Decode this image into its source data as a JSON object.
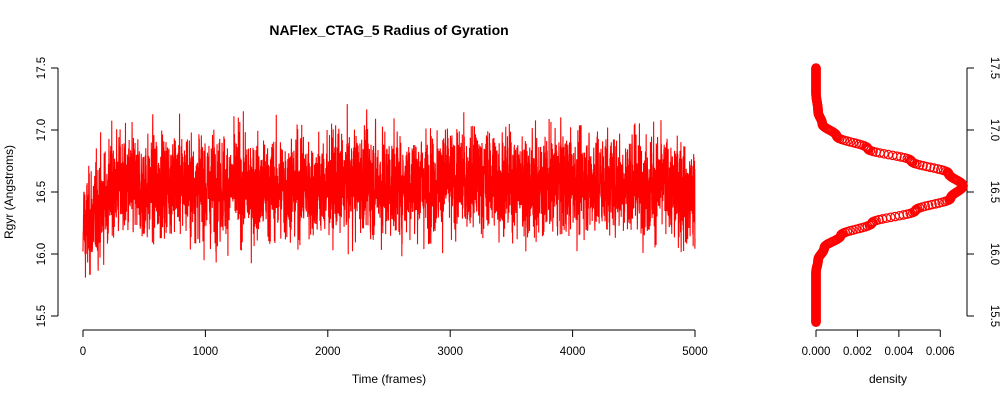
{
  "chart_data": [
    {
      "type": "line",
      "title": "NAFlex_CTAG_5 Radius of Gyration",
      "xlabel": "Time (frames)",
      "ylabel": "Rgyr (Angstroms)",
      "xlim": [
        0,
        5000
      ],
      "ylim": [
        15.5,
        17.5
      ],
      "x_ticks": [
        "0",
        "1000",
        "2000",
        "3000",
        "4000",
        "5000"
      ],
      "y_ticks": [
        "15.5",
        "16.0",
        "16.5",
        "17.0",
        "17.5"
      ],
      "series": [
        {
          "color": "#ff0000",
          "x": [
            0,
            250,
            500,
            750,
            1000,
            1250,
            1500,
            1750,
            2000,
            2250,
            2500,
            2750,
            3000,
            3250,
            3500,
            3750,
            4000,
            4250,
            4500,
            4750,
            5000
          ],
          "y": [
            16.02,
            16.55,
            16.5,
            16.6,
            16.52,
            16.55,
            16.5,
            16.55,
            16.52,
            16.6,
            16.55,
            16.58,
            16.6,
            16.62,
            16.58,
            16.56,
            16.6,
            16.58,
            16.6,
            16.55,
            16.45
          ],
          "y_mean": 16.56,
          "y_min": 15.51,
          "y_max": 17.49,
          "n_frames": 5000
        }
      ],
      "grid": false
    },
    {
      "type": "scatter",
      "title": "",
      "xlabel": "density",
      "ylabel": "",
      "xlim": [
        0,
        0.007
      ],
      "ylim": [
        15.5,
        17.5
      ],
      "x_ticks": [
        "0.000",
        "0.002",
        "0.004",
        "0.006"
      ],
      "y_ticks": [
        "15.5",
        "16.0",
        "16.5",
        "17.0",
        "17.5"
      ],
      "series": [
        {
          "color": "#ff0000",
          "x": [
            0.0,
            0.0,
            0.0,
            0.0001,
            0.0004,
            0.0012,
            0.0027,
            0.0048,
            0.0065,
            0.0071,
            0.0064,
            0.0046,
            0.0025,
            0.001,
            0.0003,
            0.0001,
            0.0,
            0.0
          ],
          "y": [
            15.45,
            15.7,
            15.85,
            15.95,
            16.05,
            16.15,
            16.25,
            16.35,
            16.45,
            16.55,
            16.65,
            16.75,
            16.85,
            16.95,
            17.05,
            17.15,
            17.3,
            17.5
          ]
        }
      ],
      "grid": false
    }
  ]
}
